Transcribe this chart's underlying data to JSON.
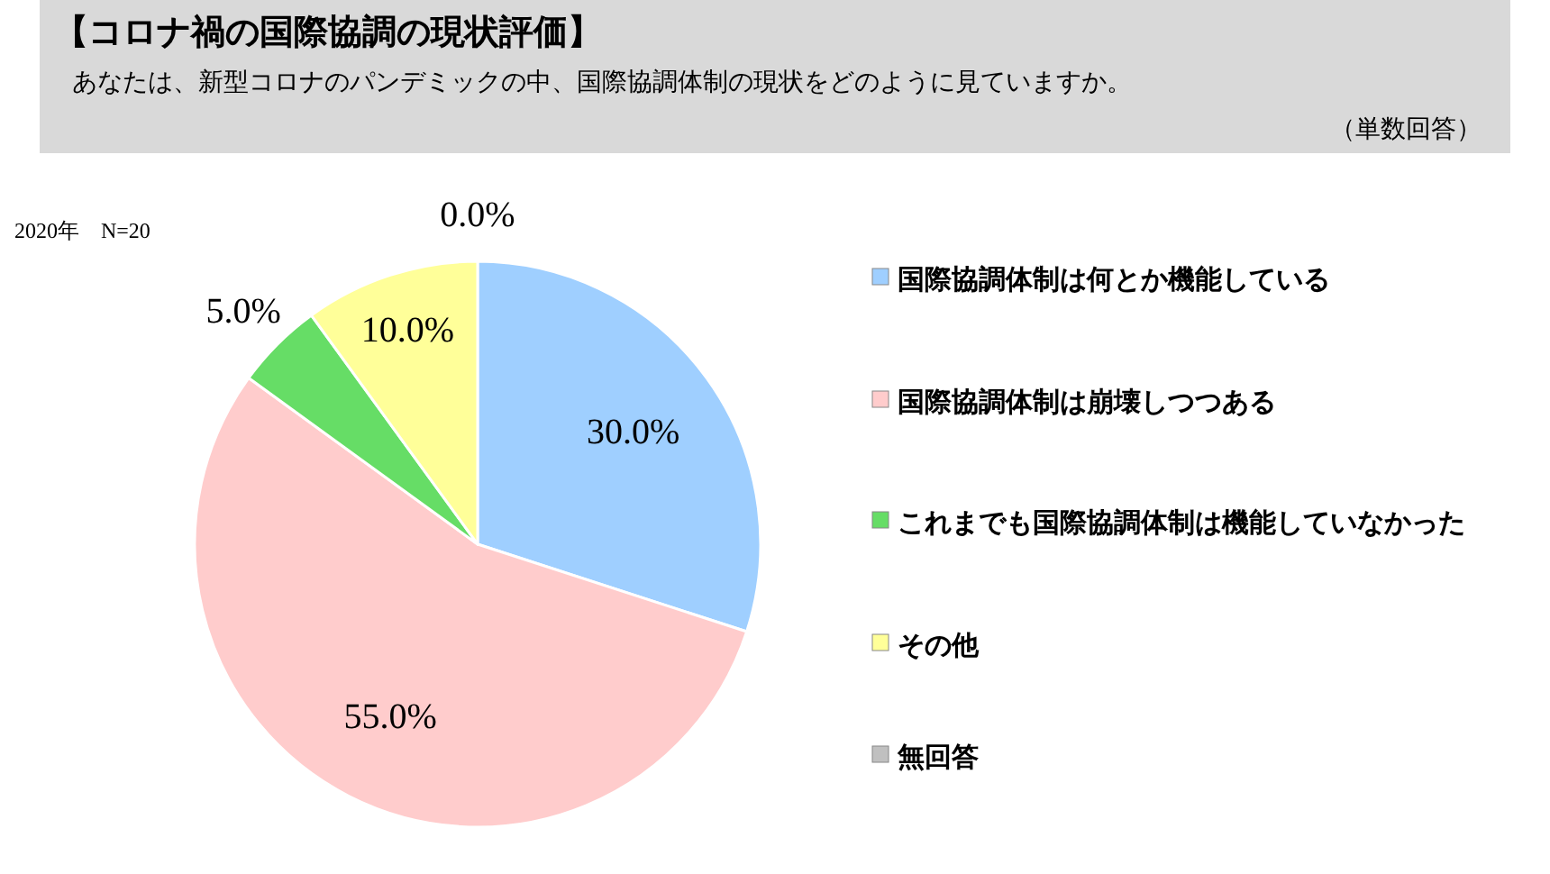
{
  "chart_data": {
    "type": "pie",
    "title": "【コロナ禍の国際協調の現状評価】",
    "subtitle": "あなたは、新型コロナのパンデミックの中、国際協調体制の現状をどのように見ていますか。",
    "annotations": [
      "（単数回答）",
      "2020年　N=20"
    ],
    "categories": [
      "国際協調体制は何とか機能している",
      "国際協調体制は崩壊しつつある",
      "これまでも国際協調体制は機能していなかった",
      "その他",
      "無回答"
    ],
    "values": [
      30,
      55,
      5,
      10,
      0
    ],
    "colors": [
      "#9fcfff",
      "#ffcccc",
      "#66dd66",
      "#ffff99",
      "#c0c0c0"
    ],
    "value_labels": [
      "30.0%",
      "55.0%",
      "5.0%",
      "10.0%",
      "0.0%"
    ],
    "legend": "right"
  }
}
